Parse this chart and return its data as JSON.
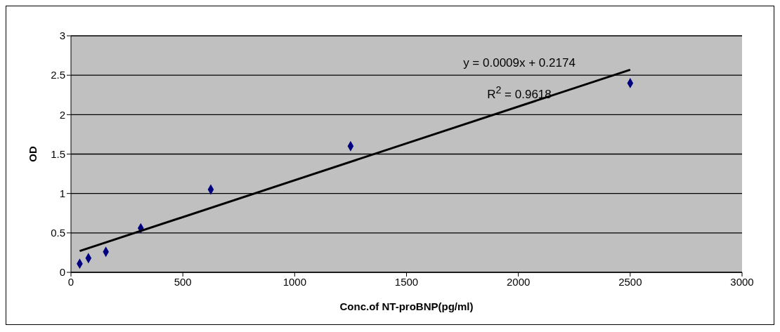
{
  "chart_data": {
    "type": "scatter",
    "xlabel": "Conc.of NT-proBNP(pg/ml)",
    "ylabel": "OD",
    "xlim": [
      0,
      3000
    ],
    "xticks": [
      0,
      500,
      1000,
      1500,
      2000,
      2500,
      3000
    ],
    "ylim": [
      0,
      3
    ],
    "yticks": [
      0,
      0.5,
      1,
      1.5,
      2,
      2.5,
      3
    ],
    "grid": "y",
    "marker": "diamond",
    "series": [
      {
        "type": "scatter",
        "color": "#000080",
        "x": [
          39,
          78,
          156,
          312,
          625,
          1250,
          2500
        ],
        "values": [
          0.11,
          0.18,
          0.26,
          0.56,
          1.05,
          1.6,
          2.4
        ]
      },
      {
        "type": "line",
        "color": "#000000",
        "marker": "none",
        "line_style": "solid",
        "x": [
          39,
          2500
        ],
        "values": [
          0.27,
          2.57
        ]
      }
    ],
    "annotations": [
      "y = 0.0009x + 0.2174",
      "R$^{2}$ = 0.9618"
    ]
  }
}
